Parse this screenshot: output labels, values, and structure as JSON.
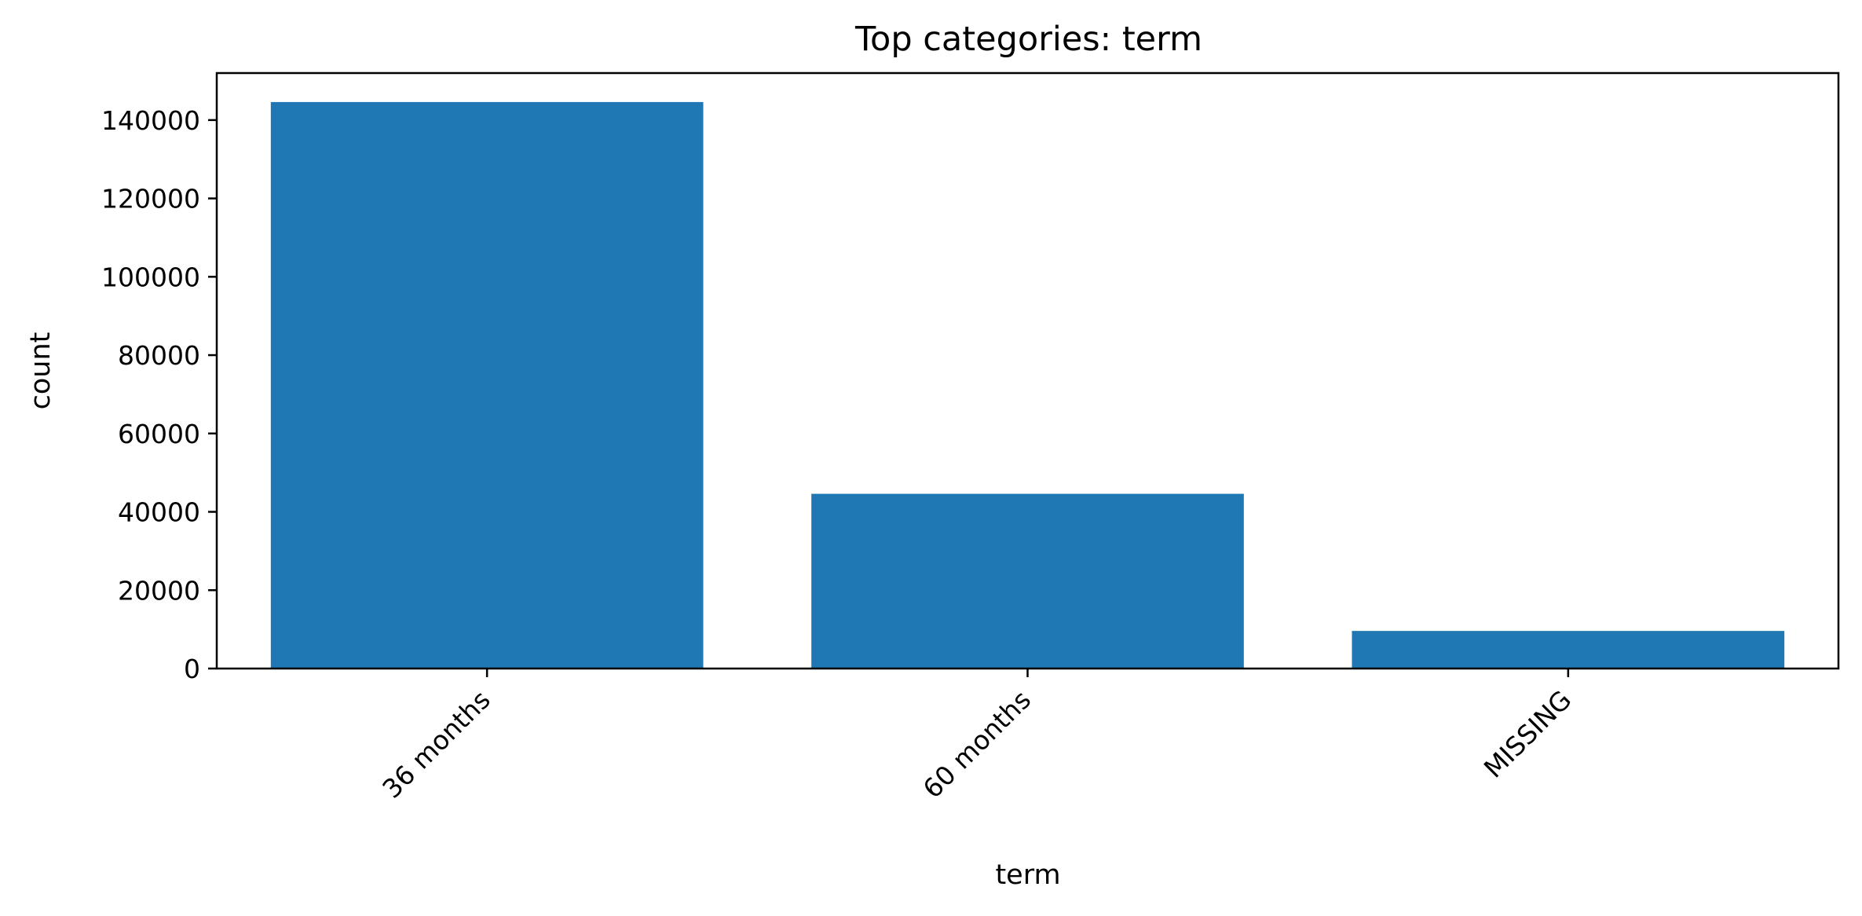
{
  "chart_data": {
    "type": "bar",
    "title": "Top categories: term",
    "xlabel": "term",
    "ylabel": "count",
    "categories": [
      "36 months",
      "60 months",
      "MISSING"
    ],
    "values": [
      144600,
      44600,
      9600
    ],
    "ylim": [
      0,
      152000
    ],
    "yticks": [
      0,
      20000,
      40000,
      60000,
      80000,
      100000,
      120000,
      140000
    ],
    "ytick_labels": [
      "0",
      "20000",
      "40000",
      "60000",
      "80000",
      "100000",
      "120000",
      "140000"
    ],
    "grid": false,
    "legend": "none",
    "bar_color": "#1f77b4"
  }
}
